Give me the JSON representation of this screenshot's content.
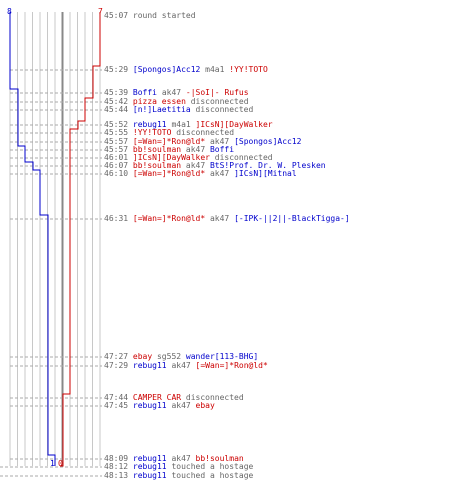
{
  "colors": {
    "team_blue": "#0000cc",
    "team_red": "#cc0000",
    "text_gray": "#666666",
    "grid": "#c8c8c8"
  },
  "counters": {
    "blue_start": "8",
    "red_start": "7",
    "blue_end": "1",
    "red_end": "0"
  },
  "events": [
    {
      "time": "45:07",
      "parts": [
        {
          "t": "round started",
          "c": "gray"
        }
      ]
    },
    {
      "time": "45:29",
      "parts": [
        {
          "t": "[Spongos]Acc12",
          "c": "blue"
        },
        {
          "t": " m4a1 ",
          "c": "gray"
        },
        {
          "t": "!YY!TOTO",
          "c": "red"
        }
      ]
    },
    {
      "time": "45:39",
      "parts": [
        {
          "t": "Boffi",
          "c": "blue"
        },
        {
          "t": " ak47 ",
          "c": "gray"
        },
        {
          "t": "-|SoI|- Rufus",
          "c": "red"
        }
      ]
    },
    {
      "time": "45:42",
      "parts": [
        {
          "t": "pizza essen",
          "c": "red"
        },
        {
          "t": " disconnected",
          "c": "gray"
        }
      ]
    },
    {
      "time": "45:44",
      "parts": [
        {
          "t": "[n!]Laetitia",
          "c": "blue"
        },
        {
          "t": " disconnected",
          "c": "gray"
        }
      ]
    },
    {
      "time": "45:52",
      "parts": [
        {
          "t": "rebug11",
          "c": "blue"
        },
        {
          "t": " m4a1 ",
          "c": "gray"
        },
        {
          "t": "]ICsN][DayWalker",
          "c": "red"
        }
      ]
    },
    {
      "time": "45:55",
      "parts": [
        {
          "t": "!YY!TOTO",
          "c": "red"
        },
        {
          "t": " disconnected",
          "c": "gray"
        }
      ]
    },
    {
      "time": "45:57",
      "parts": [
        {
          "t": "[=Wan=]*Ron@ld*",
          "c": "red"
        },
        {
          "t": " ak47 ",
          "c": "gray"
        },
        {
          "t": "[Spongos]Acc12",
          "c": "blue"
        }
      ]
    },
    {
      "time": "45:57",
      "parts": [
        {
          "t": "bb!soulman",
          "c": "red"
        },
        {
          "t": " ak47 ",
          "c": "gray"
        },
        {
          "t": "Boffi",
          "c": "blue"
        }
      ]
    },
    {
      "time": "46:01",
      "parts": [
        {
          "t": "]ICsN][DayWalker",
          "c": "red"
        },
        {
          "t": " disconnected",
          "c": "gray"
        }
      ]
    },
    {
      "time": "46:07",
      "parts": [
        {
          "t": "bb!soulman",
          "c": "red"
        },
        {
          "t": " ak47 ",
          "c": "gray"
        },
        {
          "t": "BtS!Prof. Dr. W. Plesken",
          "c": "blue"
        }
      ]
    },
    {
      "time": "46:10",
      "parts": [
        {
          "t": "[=Wan=]*Ron@ld*",
          "c": "red"
        },
        {
          "t": " ak47 ",
          "c": "gray"
        },
        {
          "t": "]ICsN][Mitnal",
          "c": "blue"
        }
      ]
    },
    {
      "time": "46:31",
      "parts": [
        {
          "t": "[=Wan=]*Ron@ld*",
          "c": "red"
        },
        {
          "t": " ak47 ",
          "c": "gray"
        },
        {
          "t": "[-IPK-||2||-BlackTigga-]",
          "c": "blue"
        }
      ]
    },
    {
      "time": "47:27",
      "parts": [
        {
          "t": "ebay",
          "c": "red"
        },
        {
          "t": " sg552 ",
          "c": "gray"
        },
        {
          "t": "wander[113-BHG]",
          "c": "blue"
        }
      ]
    },
    {
      "time": "47:29",
      "parts": [
        {
          "t": "rebug11",
          "c": "blue"
        },
        {
          "t": " ak47 ",
          "c": "gray"
        },
        {
          "t": "[=Wan=]*Ron@ld*",
          "c": "red"
        }
      ]
    },
    {
      "time": "47:44",
      "parts": [
        {
          "t": "CAMPER CAR",
          "c": "red"
        },
        {
          "t": " disconnected",
          "c": "gray"
        }
      ]
    },
    {
      "time": "47:45",
      "parts": [
        {
          "t": "rebug11",
          "c": "blue"
        },
        {
          "t": " ak47 ",
          "c": "gray"
        },
        {
          "t": "ebay",
          "c": "red"
        }
      ]
    },
    {
      "time": "48:09",
      "parts": [
        {
          "t": "rebug11",
          "c": "blue"
        },
        {
          "t": " ak47 ",
          "c": "gray"
        },
        {
          "t": "bb!soulman",
          "c": "red"
        }
      ]
    },
    {
      "time": "48:12",
      "parts": [
        {
          "t": "rebug11",
          "c": "blue"
        },
        {
          "t": " touched a hostage",
          "c": "gray"
        }
      ]
    },
    {
      "time": "48:13",
      "parts": [
        {
          "t": "rebug11",
          "c": "blue"
        },
        {
          "t": " touched a hostage",
          "c": "gray"
        }
      ]
    }
  ]
}
